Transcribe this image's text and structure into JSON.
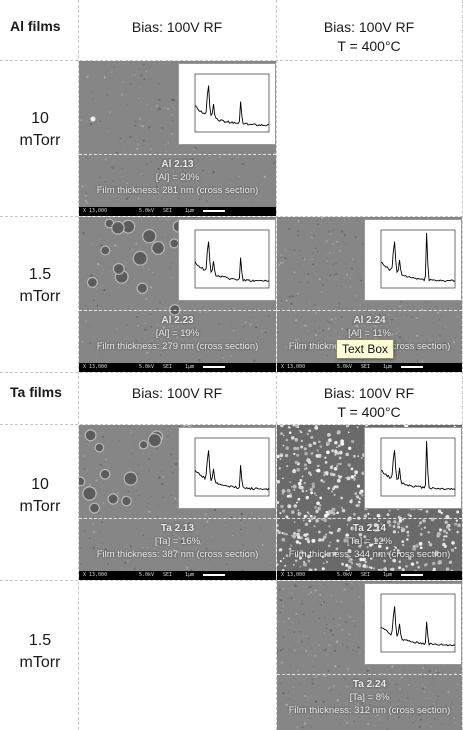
{
  "sections": {
    "al_films": "Al films",
    "ta_films": "Ta films"
  },
  "columns": {
    "col1": "Bias: 100V RF",
    "col2_line1": "Bias: 100V RF",
    "col2_line2": "T = 400°C"
  },
  "rows": {
    "r10_line1": "10",
    "r10_line2": "mTorr",
    "r15_line1": "1.5",
    "r15_line2": "mTorr"
  },
  "samples": {
    "al213": {
      "name": "Al 2.13",
      "comp": "[Al] = 20%",
      "thick": "Film thickness: 281 nm (cross section)"
    },
    "al223": {
      "name": "Al 2.23",
      "comp": "[Al] = 19%",
      "thick": "Film thickness: 279 nm (cross section)"
    },
    "al224": {
      "name": "Al 2.24",
      "comp": "[Al] = 11%",
      "thick": "Film thickness: 258 nm (cross section)"
    },
    "ta213": {
      "name": "Ta 2.13",
      "comp": "[Ta] = 16%",
      "thick": "Film thickness: 387 nm (cross section)"
    },
    "ta214": {
      "name": "Ta 2.14",
      "comp": "[Ta] = 12%",
      "thick": "Film thickness: 344 nm (cross section)"
    },
    "ta224": {
      "name": "Ta 2.24",
      "comp": "[Ta] = 8%",
      "thick": "Film thickness: 312 nm (cross section)"
    }
  },
  "tooltip": "Text Box",
  "sem_strip": {
    "mag": "X 13,000",
    "kv": "5.0kV",
    "det": "SEI",
    "scale": "1μm"
  }
}
